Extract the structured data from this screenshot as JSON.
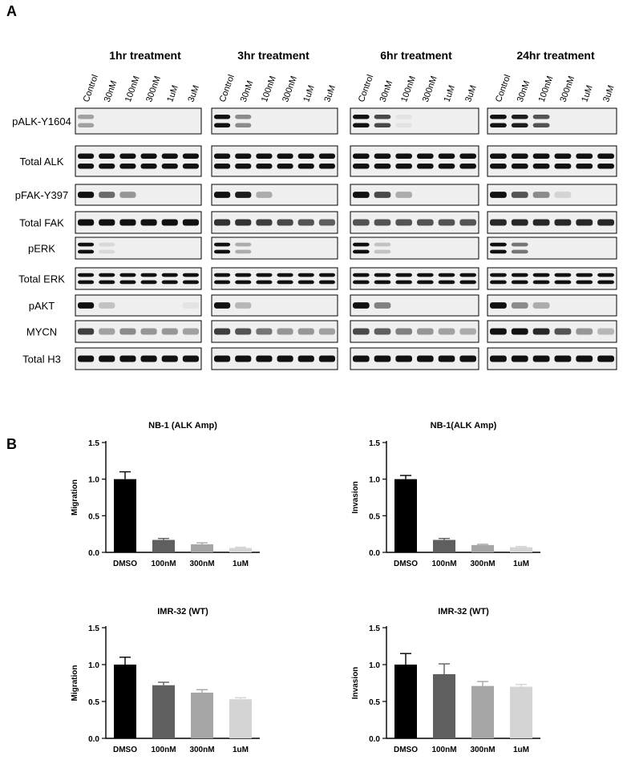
{
  "panel_a": {
    "label": "A",
    "groups": [
      {
        "title": "1hr treatment"
      },
      {
        "title": "3hr treatment"
      },
      {
        "title": "6hr treatment"
      },
      {
        "title": "24hr treatment"
      }
    ],
    "lanes": [
      "Control",
      "30nM",
      "100nM",
      "300nM",
      "1uM",
      "3uM"
    ],
    "rows": [
      {
        "label": "pALK-Y1604",
        "groups": [
          [
            0.35,
            0,
            0,
            0,
            0,
            0
          ],
          [
            1.0,
            0.45,
            0,
            0,
            0,
            0
          ],
          [
            1.0,
            0.75,
            0.05,
            0,
            0,
            0
          ],
          [
            1.0,
            0.95,
            0.7,
            0,
            0,
            0
          ]
        ]
      },
      {
        "label": "Total ALK",
        "groups": [
          [
            1,
            1,
            1,
            1,
            1,
            1
          ],
          [
            1,
            1,
            1,
            1,
            1,
            1
          ],
          [
            1,
            1,
            1,
            1,
            1,
            1
          ],
          [
            1,
            1,
            1,
            1,
            1,
            1
          ]
        ]
      },
      {
        "label": "pFAK-Y397",
        "groups": [
          [
            1.0,
            0.6,
            0.4,
            0,
            0,
            0
          ],
          [
            1.0,
            0.95,
            0.3,
            0,
            0,
            0
          ],
          [
            1.0,
            0.75,
            0.3,
            0,
            0,
            0
          ],
          [
            1.0,
            0.7,
            0.45,
            0.12,
            0,
            0
          ]
        ]
      },
      {
        "label": "Total FAK",
        "groups": [
          [
            1,
            1,
            1,
            1,
            1,
            1
          ],
          [
            0.85,
            0.85,
            0.8,
            0.75,
            0.7,
            0.65
          ],
          [
            0.7,
            0.7,
            0.7,
            0.7,
            0.7,
            0.7
          ],
          [
            0.9,
            0.9,
            0.9,
            0.9,
            0.9,
            0.9
          ]
        ]
      },
      {
        "label": "pERK",
        "groups": [
          [
            1.0,
            0.1,
            0,
            0,
            0,
            0
          ],
          [
            1.0,
            0.3,
            0,
            0,
            0,
            0
          ],
          [
            1.0,
            0.2,
            0,
            0,
            0,
            0
          ],
          [
            1.0,
            0.55,
            0,
            0,
            0,
            0
          ]
        ]
      },
      {
        "label": "Total ERK",
        "groups": [
          [
            1,
            1,
            1,
            1,
            1,
            1
          ],
          [
            1,
            1,
            1,
            1,
            1,
            1
          ],
          [
            1,
            1,
            1,
            1,
            1,
            1
          ],
          [
            1,
            1,
            1,
            1,
            1,
            1
          ]
        ]
      },
      {
        "label": "pAKT",
        "groups": [
          [
            1.0,
            0.2,
            0,
            0,
            0,
            0.05
          ],
          [
            1.0,
            0.25,
            0,
            0,
            0,
            0
          ],
          [
            1.0,
            0.5,
            0,
            0,
            0,
            0
          ],
          [
            1.0,
            0.45,
            0.3,
            0,
            0,
            0
          ]
        ]
      },
      {
        "label": "MYCN",
        "groups": [
          [
            0.8,
            0.35,
            0.45,
            0.4,
            0.4,
            0.35
          ],
          [
            0.8,
            0.7,
            0.55,
            0.4,
            0.4,
            0.35
          ],
          [
            0.75,
            0.65,
            0.5,
            0.4,
            0.35,
            0.3
          ],
          [
            1.0,
            1.0,
            0.9,
            0.7,
            0.4,
            0.25
          ]
        ]
      },
      {
        "label": "Total H3",
        "groups": [
          [
            1,
            1,
            1,
            1,
            1,
            1
          ],
          [
            1,
            1,
            1,
            1,
            1,
            1
          ],
          [
            1,
            1,
            1,
            1,
            1,
            1
          ],
          [
            1,
            1,
            1,
            1,
            1,
            1
          ]
        ]
      }
    ]
  },
  "panel_b": {
    "label": "B"
  },
  "chart_data": [
    {
      "type": "bar",
      "title": "NB-1 (ALK Amp)",
      "ylabel": "Migration",
      "xlabel": "",
      "categories": [
        "DMSO",
        "100nM",
        "300nM",
        "1uM"
      ],
      "values": [
        1.0,
        0.17,
        0.11,
        0.06
      ],
      "errors": [
        0.1,
        0.02,
        0.02,
        0.01
      ],
      "ylim": [
        0,
        1.5
      ],
      "yticks": [
        "0.0",
        "0.5",
        "1.0",
        "1.5"
      ],
      "colors": [
        "#000000",
        "#5f5f5f",
        "#a6a6a6",
        "#d4d4d4"
      ]
    },
    {
      "type": "bar",
      "title": "NB-1(ALK Amp)",
      "ylabel": "Invasion",
      "xlabel": "",
      "categories": [
        "DMSO",
        "100nM",
        "300nM",
        "1uM"
      ],
      "values": [
        1.0,
        0.17,
        0.1,
        0.07
      ],
      "errors": [
        0.05,
        0.02,
        0.01,
        0.01
      ],
      "ylim": [
        0,
        1.5
      ],
      "yticks": [
        "0.0",
        "0.5",
        "1.0",
        "1.5"
      ],
      "colors": [
        "#000000",
        "#5f5f5f",
        "#a6a6a6",
        "#d4d4d4"
      ]
    },
    {
      "type": "bar",
      "title": "IMR-32 (WT)",
      "ylabel": "Migration",
      "xlabel": "",
      "categories": [
        "DMSO",
        "100nM",
        "300nM",
        "1uM"
      ],
      "values": [
        1.0,
        0.72,
        0.62,
        0.53
      ],
      "errors": [
        0.1,
        0.04,
        0.04,
        0.02
      ],
      "ylim": [
        0,
        1.5
      ],
      "yticks": [
        "0.0",
        "0.5",
        "1.0",
        "1.5"
      ],
      "colors": [
        "#000000",
        "#5f5f5f",
        "#a6a6a6",
        "#d4d4d4"
      ]
    },
    {
      "type": "bar",
      "title": "IMR-32 (WT)",
      "ylabel": "Invasion",
      "xlabel": "",
      "categories": [
        "DMSO",
        "100nM",
        "300nM",
        "1uM"
      ],
      "values": [
        1.0,
        0.87,
        0.71,
        0.7
      ],
      "errors": [
        0.15,
        0.14,
        0.06,
        0.03
      ],
      "ylim": [
        0,
        1.5
      ],
      "yticks": [
        "0.0",
        "0.5",
        "1.0",
        "1.5"
      ],
      "colors": [
        "#000000",
        "#5f5f5f",
        "#a6a6a6",
        "#d4d4d4"
      ]
    }
  ]
}
